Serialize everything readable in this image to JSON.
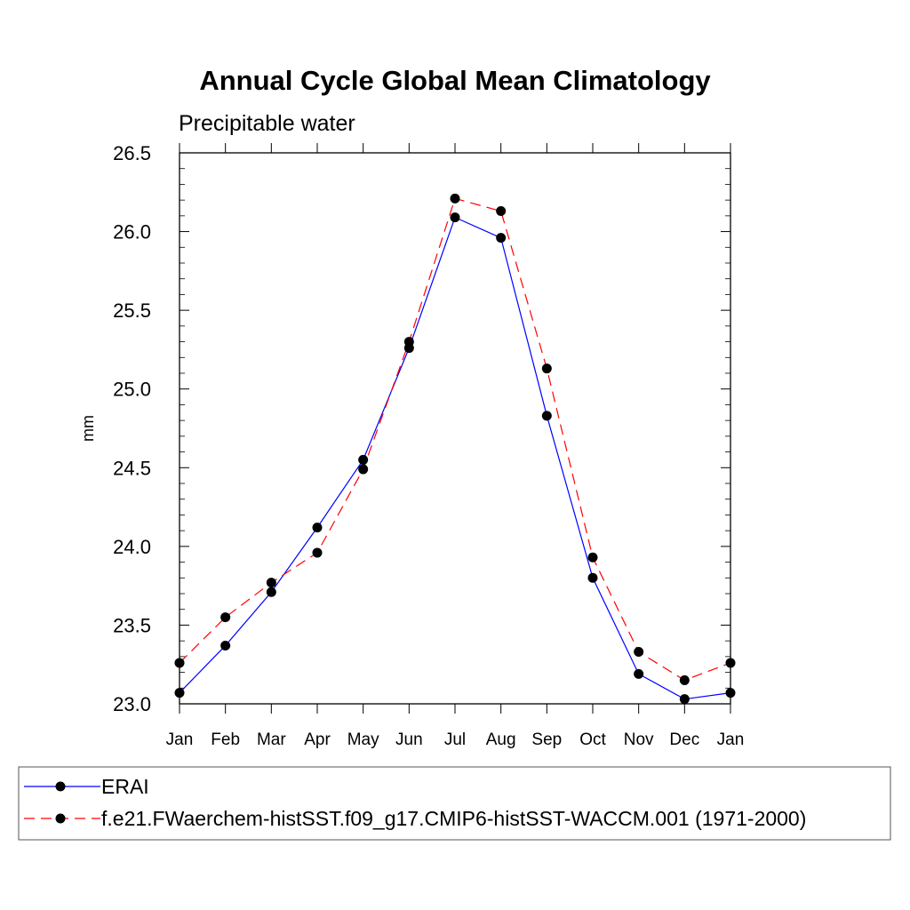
{
  "chart_data": {
    "type": "line",
    "title": "Annual Cycle Global Mean Climatology",
    "subtitle": "Precipitable water",
    "xlabel": "",
    "ylabel": "mm",
    "categories": [
      "Jan",
      "Feb",
      "Mar",
      "Apr",
      "May",
      "Jun",
      "Jul",
      "Aug",
      "Sep",
      "Oct",
      "Nov",
      "Dec",
      "Jan"
    ],
    "ylim": [
      23.0,
      26.5
    ],
    "yticks": [
      23.0,
      23.5,
      24.0,
      24.5,
      25.0,
      25.5,
      26.0,
      26.5
    ],
    "ytick_labels": [
      "23.0",
      "23.5",
      "24.0",
      "24.5",
      "25.0",
      "25.5",
      "26.0",
      "26.5"
    ],
    "legend_placement": "bottom",
    "grid": false,
    "series": [
      {
        "name": "ERAI",
        "color": "#0000ff",
        "dash": "solid",
        "values": [
          23.07,
          23.37,
          23.71,
          24.12,
          24.55,
          25.26,
          26.09,
          25.96,
          24.83,
          23.8,
          23.19,
          23.03,
          23.07
        ]
      },
      {
        "name": "f.e21.FWaerchem-histSST.f09_g17.CMIP6-histSST-WACCM.001 (1971-2000)",
        "color": "#ff0000",
        "dash": "dashed",
        "values": [
          23.26,
          23.55,
          23.77,
          23.96,
          24.49,
          25.3,
          26.21,
          26.13,
          25.13,
          23.93,
          23.33,
          23.15,
          23.26
        ]
      }
    ]
  }
}
